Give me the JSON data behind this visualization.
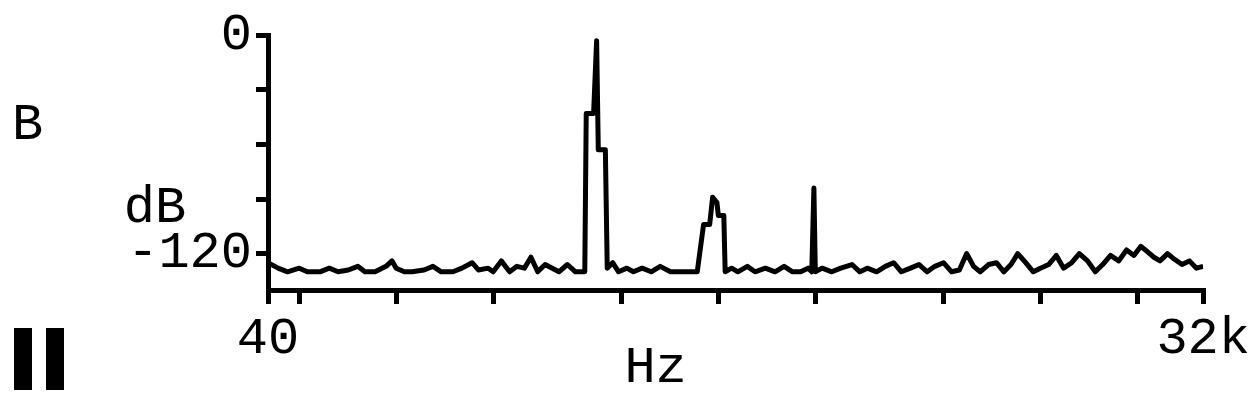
{
  "chart_data": {
    "type": "line",
    "xlabel": "Hz",
    "ylabel": "dB",
    "annotations": [
      "B"
    ],
    "log": "x",
    "grid": false,
    "legend": false,
    "marker": "none",
    "line_style": "solid",
    "xlim": [
      40,
      32000
    ],
    "xticks": [
      {
        "value": 40,
        "label": "40"
      },
      {
        "value": 50,
        "label": null
      },
      {
        "value": 100,
        "label": null
      },
      {
        "value": 200,
        "label": null
      },
      {
        "value": 500,
        "label": null
      },
      {
        "value": 1000,
        "label": null
      },
      {
        "value": 2000,
        "label": null
      },
      {
        "value": 5000,
        "label": null
      },
      {
        "value": 10000,
        "label": null
      },
      {
        "value": 20000,
        "label": null
      },
      {
        "value": 32000,
        "label": "32k"
      }
    ],
    "ylim": [
      -140,
      0
    ],
    "yticks": [
      0,
      {
        "value": -30,
        "label": null
      },
      {
        "value": -60,
        "label": null
      },
      {
        "value": -90,
        "label": null
      },
      -120
    ],
    "series": [
      {
        "color": "#000000",
        "x": [
          40,
          43,
          46,
          50,
          53,
          58,
          62,
          66,
          71,
          76,
          80,
          86,
          93,
          97,
          100,
          106,
          112,
          122,
          130,
          138,
          150,
          160,
          172,
          180,
          193,
          200,
          212,
          225,
          237,
          250,
          262,
          275,
          290,
          305,
          320,
          340,
          360,
          385,
          389,
          410,
          419,
          424,
          446,
          452,
          470,
          490,
          520,
          545,
          580,
          619,
          660,
          710,
          760,
          820,
          860,
          900,
          940,
          960,
          990,
          1000,
          1040,
          1050,
          1100,
          1150,
          1230,
          1300,
          1400,
          1500,
          1600,
          1700,
          1800,
          1900,
          1950,
          1980,
          2000,
          2100,
          2250,
          2400,
          2600,
          2750,
          2900,
          3100,
          3300,
          3500,
          3700,
          3950,
          4200,
          4450,
          4700,
          5000,
          5300,
          5600,
          5900,
          6200,
          6500,
          6900,
          7300,
          7700,
          8100,
          8500,
          9000,
          9500,
          10000,
          10600,
          11200,
          11800,
          12500,
          13200,
          14000,
          14800,
          15600,
          16500,
          17500,
          18500,
          19500,
          20500,
          21500,
          22500,
          23500,
          24800,
          26000,
          27500,
          29000,
          30500,
          32000
        ],
        "values": [
          -125,
          -128,
          -130,
          -128,
          -130,
          -130,
          -128,
          -130,
          -129,
          -127,
          -130,
          -130,
          -127,
          -124,
          -128,
          -130,
          -130,
          -129,
          -127,
          -130,
          -130,
          -128,
          -125,
          -129,
          -128,
          -130,
          -124,
          -130,
          -127,
          -128,
          -122,
          -130,
          -126,
          -128,
          -130,
          -126,
          -130,
          -130,
          -43,
          -43,
          -3,
          -63,
          -63,
          -128,
          -125,
          -130,
          -128,
          -130,
          -128,
          -130,
          -127,
          -130,
          -130,
          -130,
          -130,
          -104,
          -104,
          -89,
          -92,
          -99,
          -99,
          -130,
          -128,
          -130,
          -127,
          -130,
          -128,
          -130,
          -127,
          -130,
          -130,
          -128,
          -130,
          -84,
          -130,
          -128,
          -130,
          -128,
          -126,
          -130,
          -128,
          -130,
          -127,
          -125,
          -130,
          -128,
          -126,
          -130,
          -127,
          -125,
          -130,
          -129,
          -120,
          -127,
          -130,
          -126,
          -125,
          -130,
          -126,
          -120,
          -125,
          -130,
          -128,
          -126,
          -121,
          -128,
          -125,
          -120,
          -124,
          -130,
          -126,
          -121,
          -124,
          -118,
          -121,
          -116,
          -119,
          -122,
          -124,
          -120,
          -123,
          -126,
          -124,
          -128,
          -127
        ]
      }
    ]
  }
}
